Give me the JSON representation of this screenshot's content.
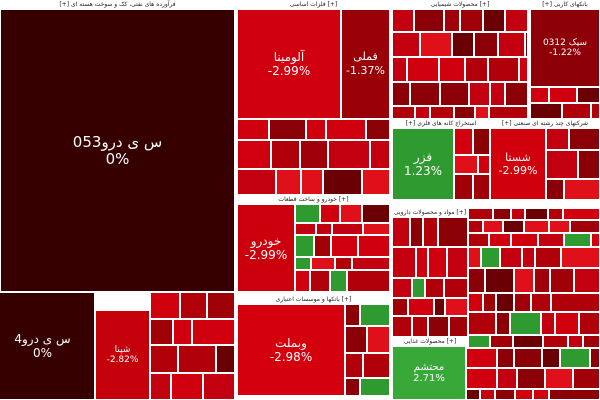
{
  "sectors": [
    {
      "header": "[+] فرآورده های نفتی، کک و سوخت هسته ای",
      "tiles": [
        {
          "name": "س ی درو053",
          "change": "0%"
        },
        {
          "name": "س ی درو4",
          "change": "0%"
        },
        {
          "name": "شپنا",
          "change": "-2.82%"
        }
      ]
    },
    {
      "header": "فلزات اساسی [+]",
      "tiles": [
        {
          "name": "آلومینا",
          "change": "-2.99%"
        },
        {
          "name": "فملی",
          "change": "-1.37%"
        }
      ]
    },
    {
      "header": "خودرو و ساخت قطعات [+]",
      "tiles": [
        {
          "name": "خودرو",
          "change": "-2.99%"
        }
      ]
    },
    {
      "header": "بانکها و موسسات اعتباری [+]",
      "tiles": [
        {
          "name": "وبملت",
          "change": "-2.98%"
        }
      ]
    },
    {
      "header": "محصولات شیمیایی [+]",
      "tiles": []
    },
    {
      "header": "[+] بانکهای کاربی",
      "tiles": [
        {
          "name": "سیک 0312",
          "change": "-1.22%"
        }
      ]
    },
    {
      "header": "[+] استخراج کانه های فلزی",
      "tiles": [
        {
          "name": "فزر",
          "change": "1.23%"
        }
      ]
    },
    {
      "header": "[+] شرکتهای چند رشته ای صنعتی",
      "tiles": [
        {
          "name": "شستا",
          "change": "-2.99%"
        }
      ]
    },
    {
      "header": "مواد و محصولات دارویی [+]",
      "tiles": []
    },
    {
      "header": "محصولات غذایی [+]",
      "tiles": [
        {
          "name": "محتشم",
          "change": "2.71%"
        }
      ]
    }
  ]
}
